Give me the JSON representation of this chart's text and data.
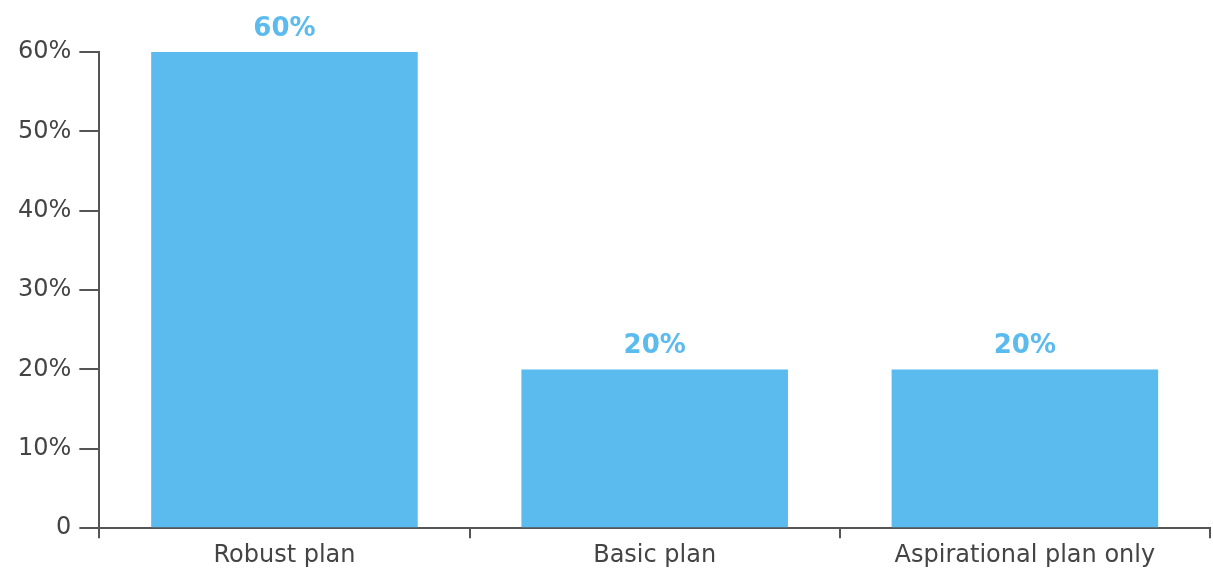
{
  "chart_data": {
    "type": "bar",
    "categories": [
      "Robust plan",
      "Basic plan",
      "Aspirational plan only"
    ],
    "values": [
      60,
      20,
      20
    ],
    "color": "#5bbbee",
    "value_labels": [
      "60%",
      "20%",
      "20%"
    ],
    "ylim": [
      0,
      60
    ],
    "yticks": [
      {
        "value": 0,
        "label": "0"
      },
      {
        "value": 10,
        "label": "10%"
      },
      {
        "value": 20,
        "label": "20%"
      },
      {
        "value": 30,
        "label": "30%"
      },
      {
        "value": 40,
        "label": "40%"
      },
      {
        "value": 50,
        "label": "50%"
      },
      {
        "value": 60,
        "label": "60%"
      }
    ]
  }
}
